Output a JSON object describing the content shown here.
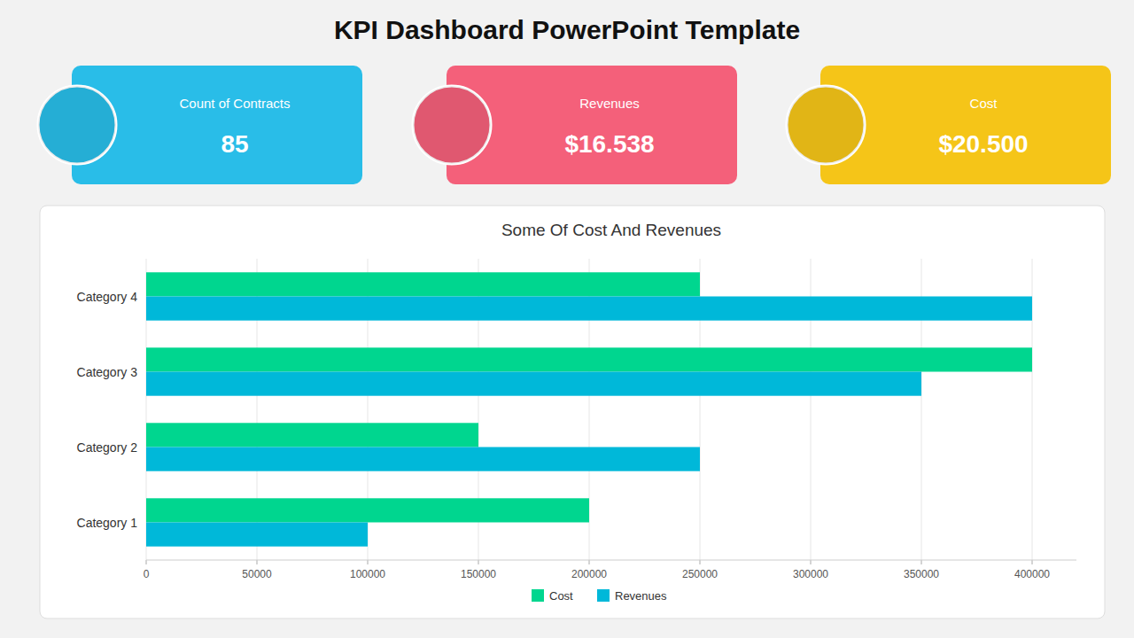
{
  "title": "KPI Dashboard PowerPoint Template",
  "cards": [
    {
      "label": "Count of Contracts",
      "value": "85",
      "color": "#29bde8"
    },
    {
      "label": "Revenues",
      "value": "$16.538",
      "color": "#f4607a"
    },
    {
      "label": "Cost",
      "value": "$20.500",
      "color": "#f5c518"
    }
  ],
  "chart_data": {
    "type": "bar",
    "orientation": "horizontal",
    "title": "Some Of Cost And Revenues",
    "categories": [
      "Category 1",
      "Category 2",
      "Category 3",
      "Category 4"
    ],
    "series": [
      {
        "name": "Cost",
        "color": "#00d68f",
        "values": [
          200000,
          150000,
          400000,
          250000
        ]
      },
      {
        "name": "Revenues",
        "color": "#00b8d9",
        "values": [
          100000,
          250000,
          350000,
          400000
        ]
      }
    ],
    "xlim": [
      0,
      420000
    ],
    "xticks": [
      0,
      50000,
      100000,
      150000,
      200000,
      250000,
      300000,
      350000,
      400000
    ],
    "grid": true,
    "legend": "bottom"
  }
}
